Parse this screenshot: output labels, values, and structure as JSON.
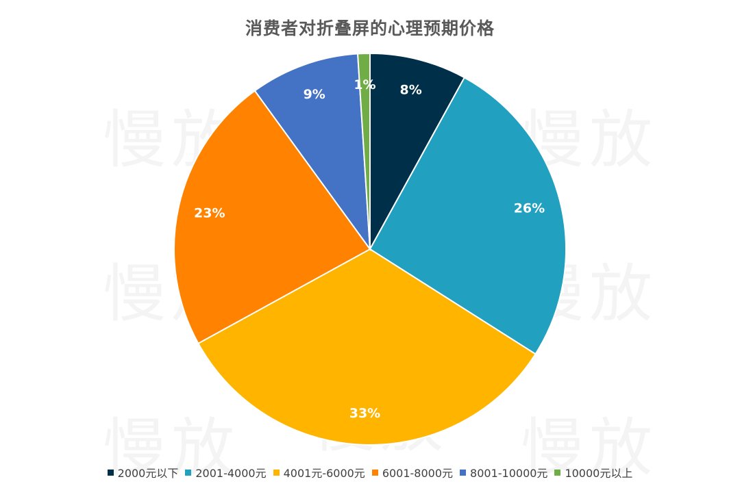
{
  "chart_data": {
    "type": "pie",
    "title": "消费者对折叠屏的心理预期价格",
    "categories": [
      "2000元以下",
      "2001-4000元",
      "4001元-6000元",
      "6001-8000元",
      "8001-10000元",
      "10000元以上"
    ],
    "values": [
      8,
      26,
      33,
      23,
      9,
      1
    ],
    "value_labels": [
      "8%",
      "26%",
      "33%",
      "23%",
      "9%",
      "1%"
    ],
    "colors": [
      "#003049",
      "#22A0C0",
      "#FFB400",
      "#FF8300",
      "#4472C4",
      "#70AD47"
    ],
    "legend_position": "bottom",
    "start_angle_deg": 0,
    "direction": "clockwise"
  },
  "watermark": {
    "text": "慢放"
  }
}
